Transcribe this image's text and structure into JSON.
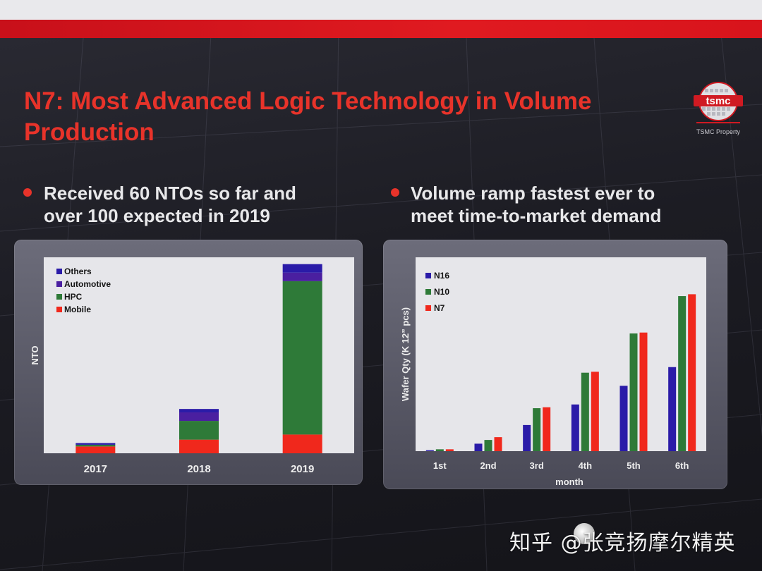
{
  "slide": {
    "title_line1": "N7: Most Advanced Logic Technology in Volume",
    "title_line2": "Production",
    "logo_text": "TSMC Property",
    "logo_wordmark": "tsmc",
    "left_bullet_line1": "Received 60 NTOs so far and",
    "left_bullet_line2": "over 100 expected in 2019",
    "right_bullet_line1": "Volume ramp fastest ever to",
    "right_bullet_line2": "meet time-to-market demand",
    "watermark": "知乎 @张竞扬摩尔精英",
    "colors": {
      "accent_red": "#e8332a",
      "mobile": "#f0281c",
      "hpc": "#2e7a38",
      "automotive": "#4a1fa0",
      "others": "#2a1ba8",
      "n16": "#2a1ba8",
      "n10": "#2e7a38",
      "n7": "#f0281c"
    }
  },
  "chart_data": [
    {
      "type": "bar",
      "stacked": true,
      "categories": [
        "2017",
        "2018",
        "2019"
      ],
      "series": [
        {
          "name": "Mobile",
          "values": [
            4,
            8,
            11
          ]
        },
        {
          "name": "HPC",
          "values": [
            1,
            11,
            90
          ]
        },
        {
          "name": "Automotive",
          "values": [
            0,
            5,
            5
          ]
        },
        {
          "name": "Others",
          "values": [
            1,
            2,
            5
          ]
        }
      ],
      "legend_order": [
        "Others",
        "Automotive",
        "HPC",
        "Mobile"
      ],
      "ylabel": "NTO",
      "xlabel": "",
      "ylim": [
        0,
        115
      ],
      "legend": "top-left",
      "grid": false,
      "y_ticks_shown": false
    },
    {
      "type": "bar",
      "categories": [
        "1st",
        "2nd",
        "3rd",
        "4th",
        "5th",
        "6th"
      ],
      "series": [
        {
          "name": "N16",
          "values": [
            0.5,
            4,
            14,
            25,
            35,
            45
          ]
        },
        {
          "name": "N10",
          "values": [
            1,
            6,
            23,
            42,
            63,
            83
          ]
        },
        {
          "name": "N7",
          "values": [
            1,
            7.5,
            23.5,
            42.5,
            63.5,
            84
          ]
        }
      ],
      "xlabel": "month",
      "ylabel": "Wafer Qty (K 12” pcs)",
      "ylim": [
        0,
        100
      ],
      "legend": "top-left",
      "grid": false,
      "y_ticks_shown": false
    }
  ]
}
